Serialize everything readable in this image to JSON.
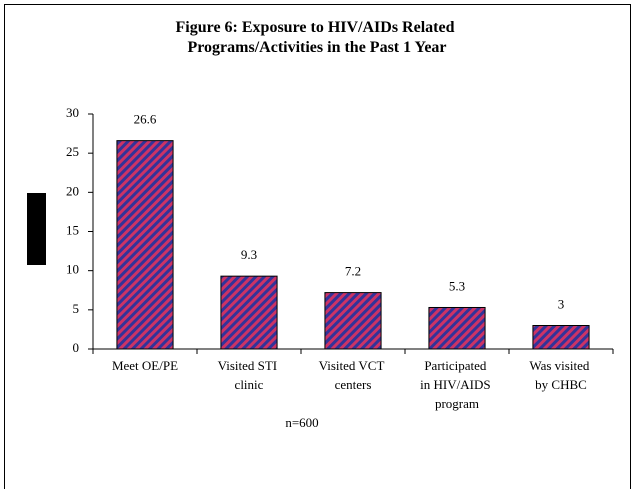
{
  "chart_data": {
    "type": "bar",
    "title": "Figure 6: Exposure to HIV/AIDs Related Programs/Activities in the Past 1 Year",
    "categories": [
      "Meet OE/PE",
      "Visited STI clinic",
      "Visited VCT centers",
      "Participated in HIV/AIDS program",
      "Was visited by CHBC"
    ],
    "values": [
      26.6,
      9.3,
      7.2,
      5.3,
      3
    ],
    "color": "#cc3366",
    "hatch_color": "#333399",
    "ylim": [
      0,
      30
    ],
    "yticks": [
      0,
      5,
      10,
      15,
      20,
      25,
      30
    ],
    "grid": false,
    "annotation": "n=600"
  }
}
